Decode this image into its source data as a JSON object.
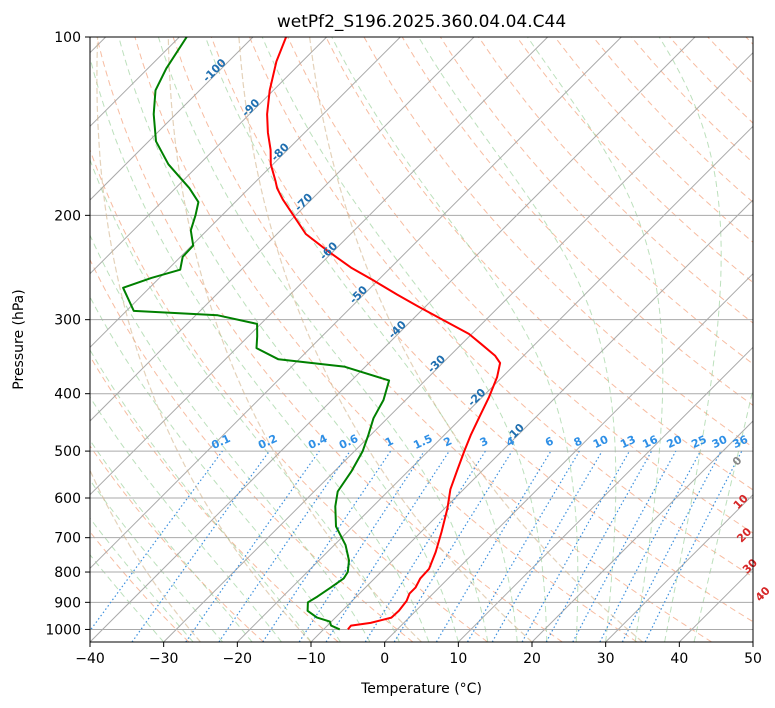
{
  "chart_data": {
    "type": "line",
    "title": "wetPf2_S196.2025.360.04.04.C44",
    "xlabel": "Temperature (°C)",
    "ylabel": "Pressure (hPa)",
    "xlim": [
      -40,
      50
    ],
    "ylim": [
      1050,
      100
    ],
    "y_scale": "log",
    "skew_degrees": 45,
    "x_ticks": [
      "−40",
      "−30",
      "−20",
      "−10",
      "0",
      "10",
      "20",
      "30",
      "40",
      "50"
    ],
    "x_tick_values": [
      -40,
      -30,
      -20,
      -10,
      0,
      10,
      20,
      30,
      40,
      50
    ],
    "y_ticks": [
      "100",
      "200",
      "300",
      "400",
      "500",
      "600",
      "700",
      "800",
      "900",
      "1000"
    ],
    "y_tick_values": [
      100,
      200,
      300,
      400,
      500,
      600,
      700,
      800,
      900,
      1000
    ],
    "grid": true,
    "series": [
      {
        "id": "temperature",
        "color": "#ff0000",
        "points": [
          [
            -6.7,
            1000
          ],
          [
            -6.8,
            985
          ],
          [
            -4.5,
            975
          ],
          [
            -2.4,
            955
          ],
          [
            -2.3,
            930
          ],
          [
            -2.6,
            895
          ],
          [
            -3.2,
            870
          ],
          [
            -3.2,
            850
          ],
          [
            -3.8,
            820
          ],
          [
            -3.9,
            790
          ],
          [
            -5.3,
            740
          ],
          [
            -7.2,
            685
          ],
          [
            -9.6,
            625
          ],
          [
            -11.8,
            580
          ],
          [
            -13.4,
            540
          ],
          [
            -15.1,
            500
          ],
          [
            -16.4,
            470
          ],
          [
            -17.6,
            440
          ],
          [
            -19.1,
            405
          ],
          [
            -20.7,
            375
          ],
          [
            -22.2,
            355
          ],
          [
            -23.9,
            345
          ],
          [
            -27.3,
            330
          ],
          [
            -30.4,
            317
          ],
          [
            -34.9,
            303
          ],
          [
            -41.0,
            285
          ],
          [
            -45.5,
            272
          ],
          [
            -50.8,
            257
          ],
          [
            -55.4,
            245
          ],
          [
            -60.7,
            230
          ],
          [
            -66.1,
            215
          ],
          [
            -70.3,
            200
          ],
          [
            -73.9,
            188
          ],
          [
            -76.2,
            180
          ],
          [
            -77.4,
            175
          ],
          [
            -80.3,
            164
          ],
          [
            -82.3,
            155
          ],
          [
            -85.0,
            145
          ],
          [
            -87.6,
            135
          ],
          [
            -90.5,
            123
          ],
          [
            -93.5,
            110
          ],
          [
            -95.5,
            100
          ]
        ]
      },
      {
        "id": "dewpoint",
        "color": "#008000",
        "points": [
          [
            -7.8,
            1000
          ],
          [
            -9.5,
            985
          ],
          [
            -10.2,
            970
          ],
          [
            -12.5,
            955
          ],
          [
            -14.7,
            930
          ],
          [
            -15.8,
            900
          ],
          [
            -15.3,
            880
          ],
          [
            -14.7,
            850
          ],
          [
            -14.2,
            820
          ],
          [
            -14.5,
            800
          ],
          [
            -15.9,
            765
          ],
          [
            -18.5,
            720
          ],
          [
            -22.3,
            670
          ],
          [
            -25.1,
            620
          ],
          [
            -26.8,
            585
          ],
          [
            -27.7,
            540
          ],
          [
            -28.9,
            500
          ],
          [
            -30.3,
            470
          ],
          [
            -31.9,
            440
          ],
          [
            -33.0,
            410
          ],
          [
            -34.9,
            380
          ],
          [
            -42.9,
            360
          ],
          [
            -52.8,
            350
          ],
          [
            -57.3,
            335
          ],
          [
            -58.8,
            320
          ],
          [
            -60.5,
            305
          ],
          [
            -67.0,
            295
          ],
          [
            -79.0,
            290
          ],
          [
            -83.6,
            265
          ],
          [
            -81.1,
            255
          ],
          [
            -78.3,
            247
          ],
          [
            -79.7,
            235
          ],
          [
            -79.8,
            225
          ],
          [
            -82.2,
            212
          ],
          [
            -83.6,
            200
          ],
          [
            -85.0,
            190
          ],
          [
            -88.1,
            180
          ],
          [
            -94.2,
            164
          ],
          [
            -99.0,
            150
          ],
          [
            -103.0,
            135
          ],
          [
            -106.0,
            123
          ],
          [
            -107.5,
            113
          ],
          [
            -109.0,
            100
          ]
        ]
      }
    ],
    "dry_adiabat_labels": [
      "-100",
      "-90",
      "-80",
      "-70",
      "-60",
      "-50",
      "-40",
      "-30",
      "-20",
      "-10"
    ],
    "dry_adiabat_label_positions": [
      [
        -100,
        115
      ],
      [
        -90,
        133
      ],
      [
        -80,
        158
      ],
      [
        -70,
        192
      ],
      [
        -60,
        232
      ],
      [
        -50,
        275
      ],
      [
        -40,
        315
      ],
      [
        -30,
        360
      ],
      [
        -20,
        410
      ],
      [
        -10,
        470
      ]
    ],
    "mixing_ratio_labels": [
      "0.1",
      "0.2",
      "0.4",
      "0.6",
      "1",
      "1.5",
      "2",
      "3",
      "4",
      "6",
      "8",
      "10",
      "13",
      "16",
      "20",
      "25",
      "30",
      "36"
    ],
    "mixing_ratio_values": [
      0.1,
      0.2,
      0.4,
      0.6,
      1,
      1.5,
      2,
      3,
      4,
      6,
      8,
      10,
      13,
      16,
      20,
      25,
      30,
      36
    ],
    "moist_adiabat_labels": [
      "0",
      "10",
      "20",
      "30",
      "40"
    ],
    "moist_adiabat_label_points": [
      [
        24,
        525
      ],
      [
        30,
        615
      ],
      [
        35,
        700
      ],
      [
        40,
        790
      ],
      [
        45.5,
        880
      ]
    ]
  }
}
